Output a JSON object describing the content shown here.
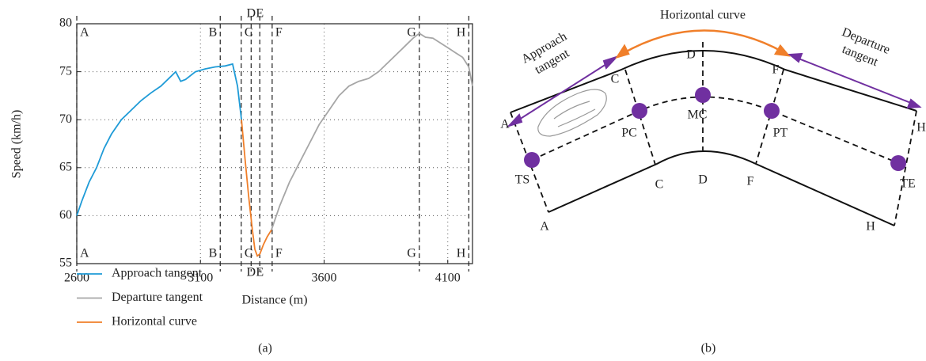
{
  "chart_data": {
    "type": "line",
    "caption": "(a)",
    "xlabel": "Distance (m)",
    "ylabel": "Speed (km/h)",
    "xlim": [
      2600,
      4200
    ],
    "xticks": [
      2600,
      3100,
      3600,
      4100
    ],
    "ylim": [
      55,
      80
    ],
    "yticks": [
      55,
      60,
      65,
      70,
      75,
      80
    ],
    "grid": true,
    "markers": [
      {
        "label": "A",
        "x": 2600
      },
      {
        "label": "B",
        "x": 3180
      },
      {
        "label": "C",
        "x": 3265
      },
      {
        "label": "D",
        "x": 3305
      },
      {
        "label": "E",
        "x": 3340
      },
      {
        "label": "F",
        "x": 3390
      },
      {
        "label": "G",
        "x": 3985
      },
      {
        "label": "H",
        "x": 4185
      }
    ],
    "series": [
      {
        "name": "Approach tangent",
        "color": "#1f9bd7",
        "x": [
          2600,
          2620,
          2650,
          2680,
          2710,
          2740,
          2780,
          2820,
          2860,
          2900,
          2940,
          2980,
          3000,
          3020,
          3040,
          3080,
          3120,
          3160,
          3200,
          3230,
          3250,
          3266
        ],
        "values": [
          60,
          61.5,
          63.5,
          65,
          67,
          68.5,
          70,
          71,
          72,
          72.8,
          73.5,
          74.5,
          75,
          74,
          74.2,
          75,
          75.3,
          75.5,
          75.6,
          75.8,
          73.5,
          70
        ]
      },
      {
        "name": "Departure tangent",
        "color": "#a6a6a6",
        "x": [
          3387,
          3420,
          3460,
          3500,
          3540,
          3580,
          3620,
          3660,
          3700,
          3740,
          3780,
          3820,
          3860,
          3900,
          3940,
          3960,
          3985,
          4010,
          4040,
          4070,
          4100,
          4130,
          4160,
          4185,
          4200
        ],
        "values": [
          58.5,
          61,
          63.5,
          65.5,
          67.5,
          69.5,
          71,
          72.5,
          73.5,
          74,
          74.3,
          75,
          76,
          77,
          78,
          78.5,
          79,
          78.6,
          78.5,
          78,
          77.5,
          77,
          76.5,
          75.5,
          73.5
        ]
      },
      {
        "name": "Horizontal curve",
        "color": "#f07f2a",
        "x": [
          3266,
          3280,
          3295,
          3310,
          3320,
          3330,
          3340,
          3355,
          3370,
          3387
        ],
        "values": [
          70,
          66,
          62,
          58.5,
          56.5,
          55.8,
          56,
          57,
          57.8,
          58.5
        ]
      }
    ]
  },
  "diagram": {
    "caption": "(b)",
    "title": "Horizontal curve",
    "approach_label": [
      "Approach",
      "tangent"
    ],
    "departure_label": [
      "Departure",
      "tangent"
    ],
    "outer_letters": [
      "A",
      "C",
      "D",
      "F",
      "H"
    ],
    "inner_letters": [
      "A",
      "C",
      "D",
      "F",
      "H"
    ],
    "points": [
      "TS",
      "PC",
      "MC",
      "PT",
      "TE"
    ]
  }
}
